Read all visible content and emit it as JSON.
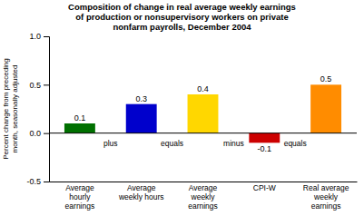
{
  "chart_data": {
    "type": "bar",
    "title": "Composition of change in real average weekly earnings\nof production or nonsupervisory workers on private\nnonfarm payrolls, December 2004",
    "ylabel": "Percent change from preceding\nmonth, seasonally adjusted",
    "categories": [
      "Average\nhourly\nearnings",
      "Average\nweekly hours",
      "Average\nweekly\nearnings",
      "CPI-W",
      "Real average\nweekly\nearnings"
    ],
    "values": [
      0.1,
      0.3,
      0.4,
      -0.1,
      0.5
    ],
    "colors": [
      "#007000",
      "#0000CC",
      "#FFD700",
      "#CC0000",
      "#FF8C00"
    ],
    "annotations": [
      "plus",
      "equals",
      "minus",
      "equals"
    ],
    "ylim": [
      -0.5,
      1.0
    ],
    "yticks": [
      -0.5,
      {
        "value": 0.0,
        "label": "0.0"
      },
      0.5,
      {
        "value": 1.0,
        "label": "1.0"
      }
    ],
    "grid": false,
    "data_labels": true
  }
}
